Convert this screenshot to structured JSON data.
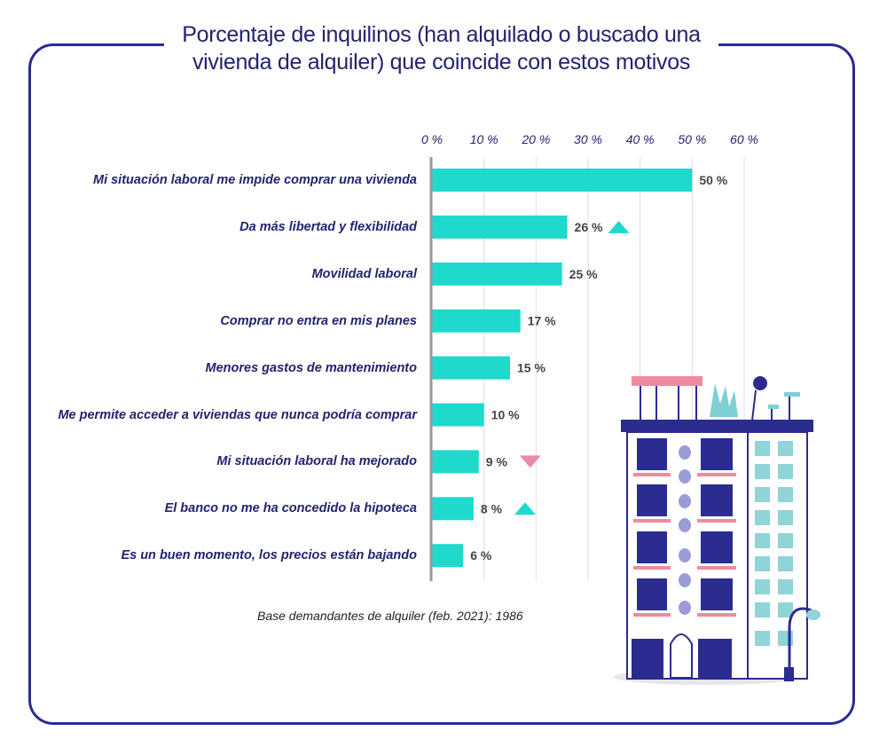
{
  "header": {
    "title_line1": "Porcentaje de inquilinos (han alquilado o buscado una",
    "title_line2": "vivienda de alquiler) que coincide con estos motivos"
  },
  "footer": {
    "base_note": "Base demandantes de alquiler (feb. 2021): 1986"
  },
  "colors": {
    "frame": "#2b2c8f",
    "bar": "#1fd9cd",
    "label_text": "#23236f",
    "trend_up": "#1fd9cd",
    "trend_down": "#ee8aa8"
  },
  "chart_data": {
    "type": "bar",
    "orientation": "horizontal",
    "title": "Porcentaje de inquilinos (han alquilado o buscado una vivienda de alquiler) que coincide con estos motivos",
    "categories": [
      "Mi situación laboral me impide comprar una vivienda",
      "Da más libertad y flexibilidad",
      "Movilidad laboral",
      "Comprar no entra en mis planes",
      "Menores gastos de mantenimiento",
      "Me permite acceder a viviendas que nunca podría comprar",
      "Mi situación laboral ha mejorado",
      "El banco no me ha concedido la hipoteca",
      "Es un buen momento, los precios están bajando"
    ],
    "values": [
      50,
      26,
      25,
      17,
      15,
      10,
      9,
      8,
      6
    ],
    "value_labels": [
      "50 %",
      "26 %",
      "25 %",
      "17 %",
      "15 %",
      "10 %",
      "9 %",
      "8 %",
      "6 %"
    ],
    "trend": [
      "",
      "up",
      "",
      "",
      "",
      "",
      "down",
      "up",
      ""
    ],
    "xlim": [
      0,
      60
    ],
    "xticks": [
      0,
      10,
      20,
      30,
      40,
      50,
      60
    ],
    "xtick_labels": [
      "0 %",
      "10 %",
      "20 %",
      "30 %",
      "40 %",
      "50 %",
      "60 %"
    ],
    "xaxis_position": "top",
    "grid": true,
    "xlabel": "",
    "ylabel": ""
  }
}
